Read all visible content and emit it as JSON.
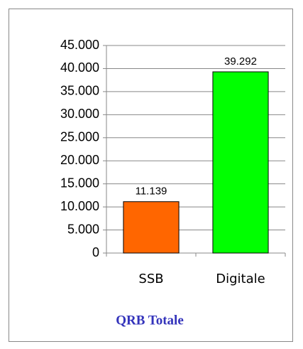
{
  "chart_data": {
    "type": "bar",
    "title": "QRB Totale",
    "categories": [
      "SSB",
      "Digitale"
    ],
    "values": [
      11139,
      39292
    ],
    "value_labels": [
      "11.139",
      "39.292"
    ],
    "colors": [
      "#ff6600",
      "#00ff00"
    ],
    "ylim": [
      0,
      45000
    ],
    "yticks": [
      0,
      {
        "value": 5000,
        "label": "5.000"
      },
      {
        "value": 10000,
        "label": "10.000"
      },
      {
        "value": 15000,
        "label": "15.000"
      },
      {
        "value": 20000,
        "label": "20.000"
      },
      {
        "value": 25000,
        "label": "25.000"
      },
      {
        "value": 30000,
        "label": "30.000"
      },
      {
        "value": 35000,
        "label": "35.000"
      },
      {
        "value": 40000,
        "label": "40.000"
      },
      {
        "value": 45000,
        "label": "45.000"
      }
    ],
    "grid": true
  }
}
